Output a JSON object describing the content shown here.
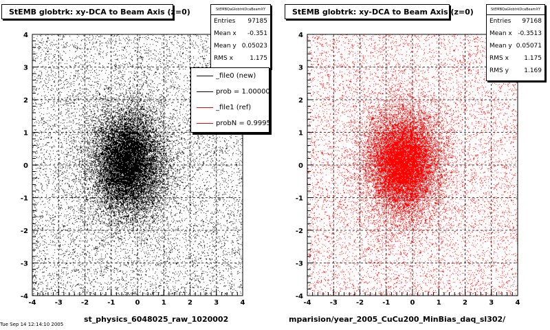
{
  "panels": [
    {
      "title": "StEMB globtrk: xy-DCA to Beam Axis (z=0)",
      "stats_header": "StEMBQaGlobtrkDcaBeamXY",
      "stats": [
        {
          "label": "Entries",
          "value": "97185"
        },
        {
          "label": "Mean x",
          "value": "-0.351"
        },
        {
          "label": "Mean y",
          "value": "0.05023"
        },
        {
          "label": "RMS x",
          "value": "1.175"
        }
      ],
      "footer": "st_physics_6048025_raw_1020002",
      "color": "#000000"
    },
    {
      "title": "StEMB globtrk: xy-DCA to Beam Axis (z=0)",
      "stats_header": "StEMBQaGlobtrkDcaBeamXY",
      "stats": [
        {
          "label": "Entries",
          "value": "97168"
        },
        {
          "label": "Mean x",
          "value": "-0.3513"
        },
        {
          "label": "Mean y",
          "value": "0.05071"
        },
        {
          "label": "RMS x",
          "value": "1.175"
        },
        {
          "label": "RMS y",
          "value": "1.169"
        }
      ],
      "footer": "mparision/year_2005_CuCu200_MinBias_daq_sl302/",
      "color": "#ff0000"
    }
  ],
  "legend": [
    {
      "label": "_file0 (new)",
      "color": "#000000"
    },
    {
      "label": "prob = 1.000000",
      "color": "#000000"
    },
    {
      "label": "_file1 (ref)",
      "color": "#ff0000"
    },
    {
      "label": "probN = 0.999527",
      "color": "#ff0000"
    }
  ],
  "date_footer": "Tue Sep 14 12:14:10 2005",
  "chart_data": [
    {
      "type": "scatter",
      "title": "StEMB globtrk: xy-DCA to Beam Axis (z=0)",
      "xlim": [
        -4,
        4
      ],
      "ylim": [
        -4,
        4
      ],
      "x_ticks": [
        "-4",
        "-3",
        "-2",
        "-1",
        "0",
        "1",
        "2",
        "3",
        "4"
      ],
      "y_ticks": [
        "-4",
        "-3",
        "-2",
        "-1",
        "0",
        "1",
        "2",
        "3",
        "4"
      ],
      "grid": true,
      "entries": 97185,
      "mean_x": -0.351,
      "mean_y": 0.05023,
      "rms_x": 1.175,
      "color": "#000000"
    },
    {
      "type": "scatter",
      "title": "StEMB globtrk: xy-DCA to Beam Axis (z=0)",
      "xlim": [
        -4,
        4
      ],
      "ylim": [
        -4,
        4
      ],
      "x_ticks": [
        "-4",
        "-3",
        "-2",
        "-1",
        "0",
        "1",
        "2",
        "3",
        "4"
      ],
      "y_ticks": [
        "-4",
        "-3",
        "-2",
        "-1",
        "0",
        "1",
        "2",
        "3",
        "4"
      ],
      "grid": true,
      "entries": 97168,
      "mean_x": -0.3513,
      "mean_y": 0.05071,
      "rms_x": 1.175,
      "rms_y": 1.169,
      "color": "#ff0000"
    }
  ]
}
